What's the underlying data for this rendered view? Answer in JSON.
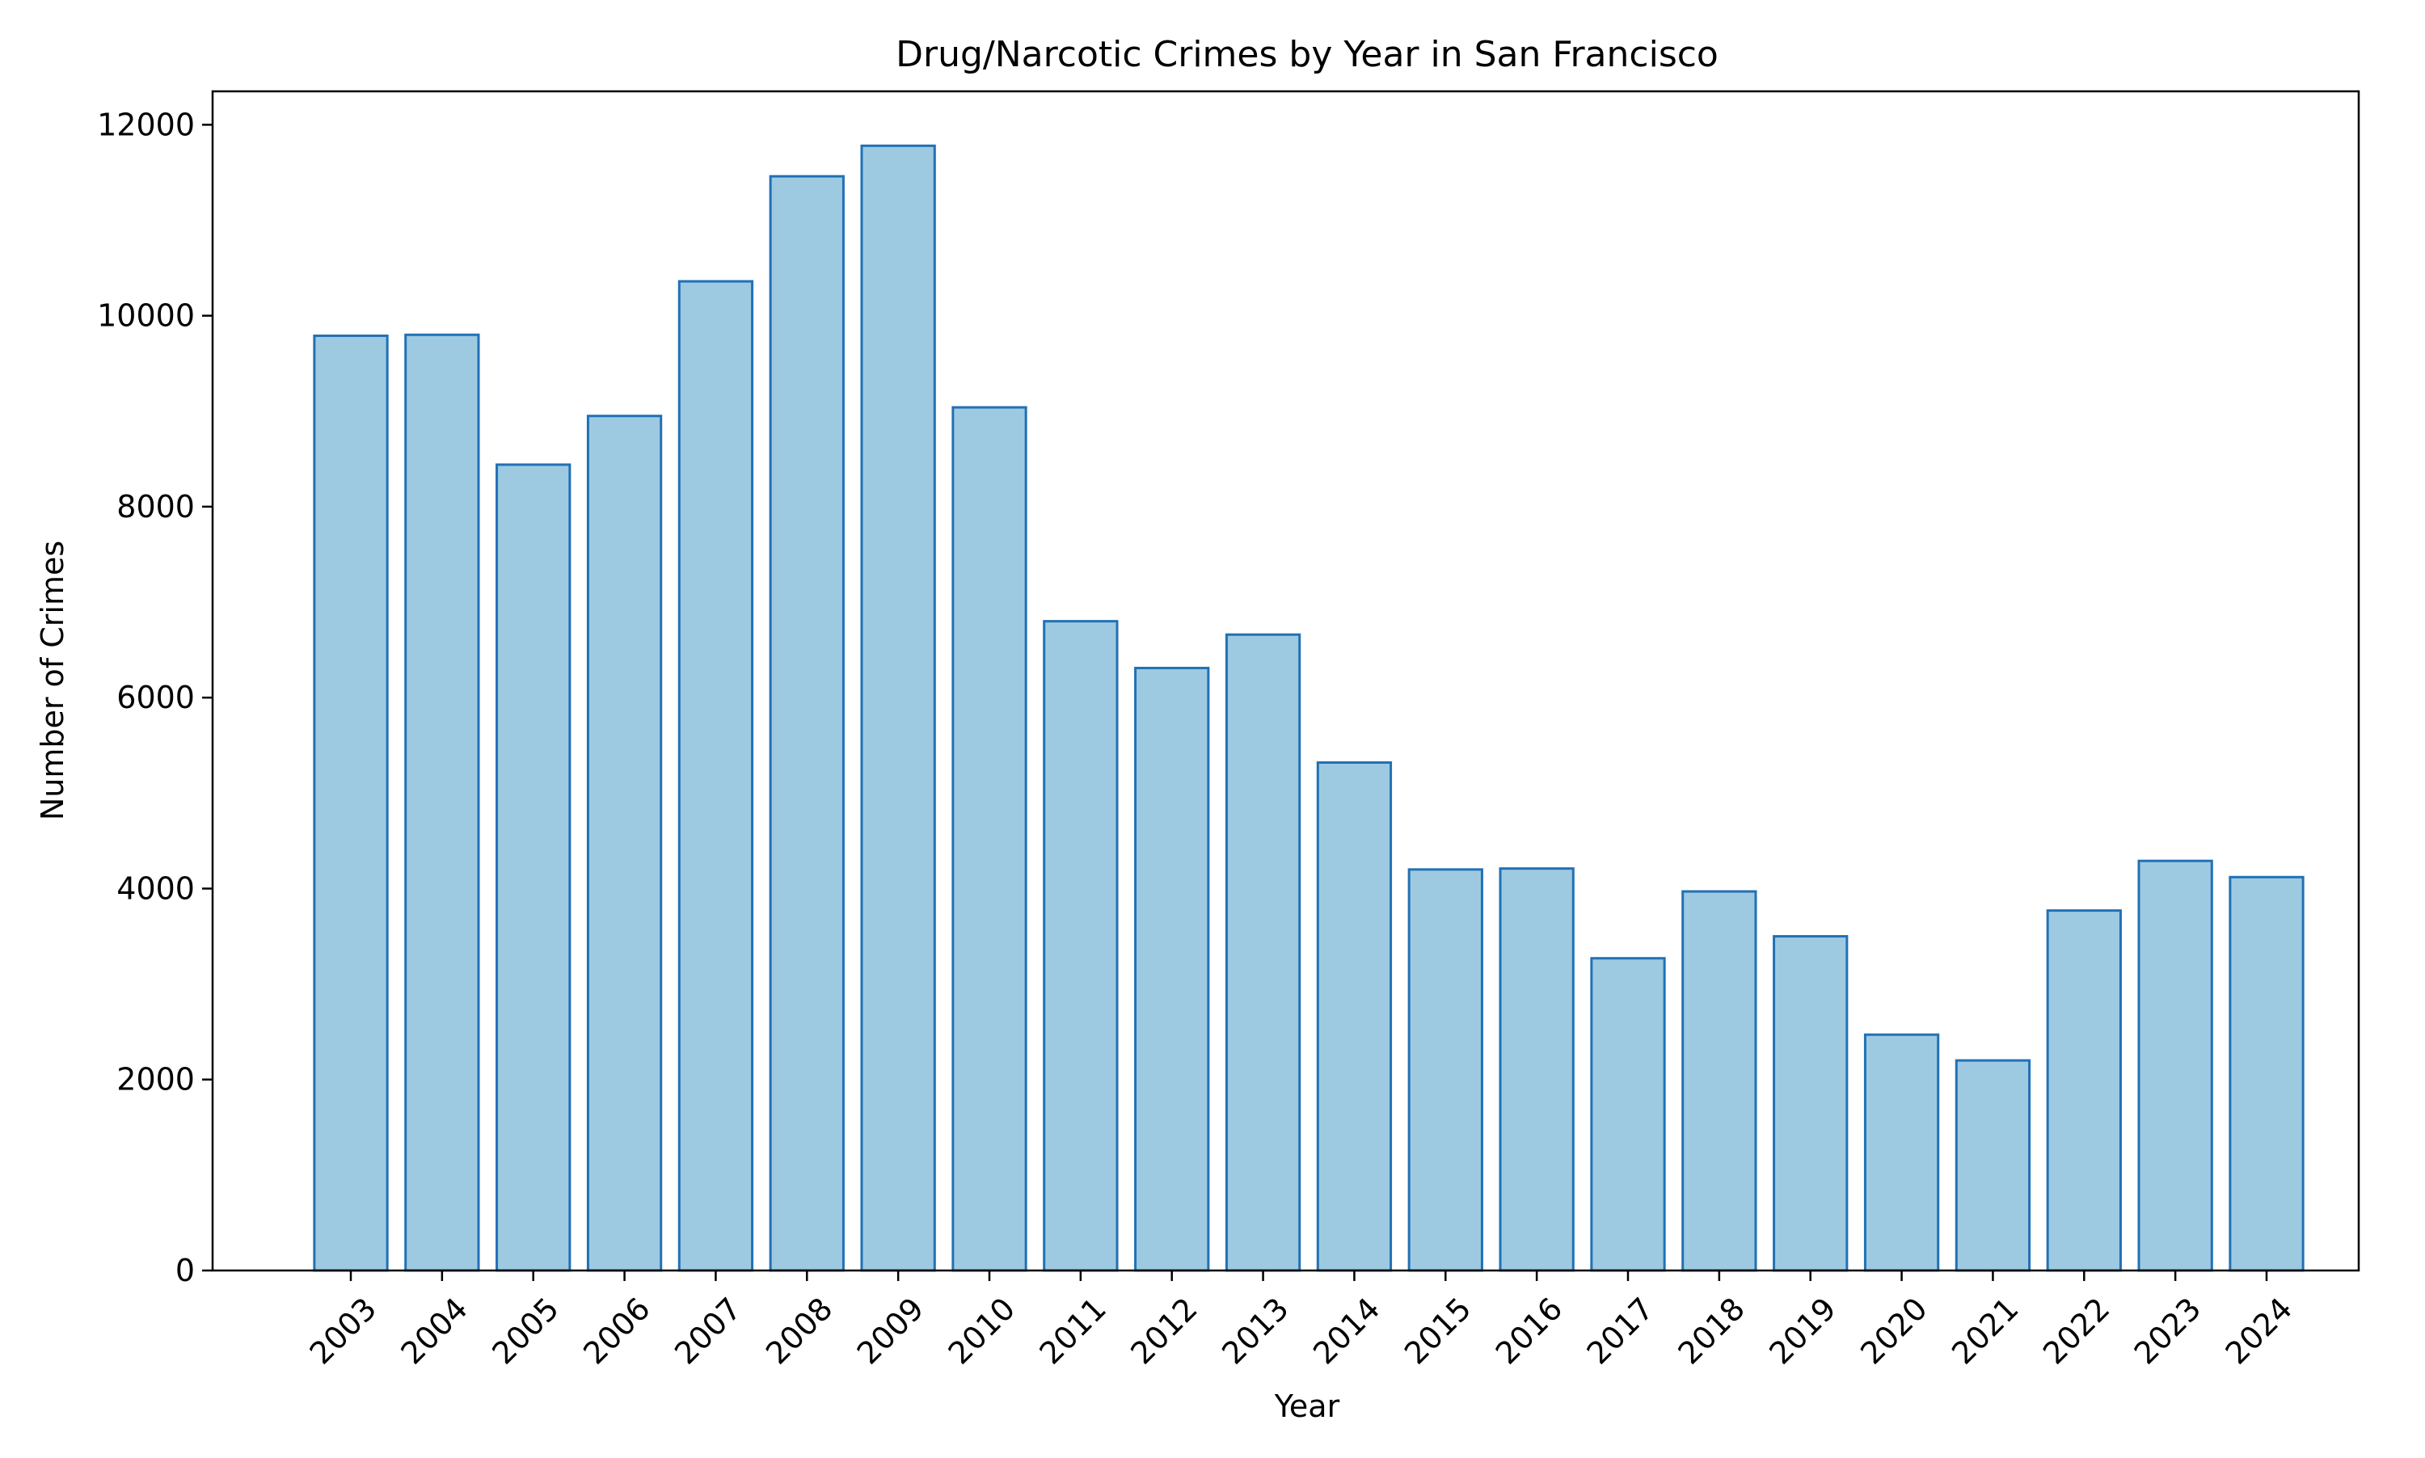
{
  "chart_data": {
    "type": "bar",
    "title": "Drug/Narcotic Crimes by Year in San Francisco",
    "xlabel": "Year",
    "ylabel": "Number of Crimes",
    "categories": [
      "2003",
      "2004",
      "2005",
      "2006",
      "2007",
      "2008",
      "2009",
      "2010",
      "2011",
      "2012",
      "2013",
      "2014",
      "2015",
      "2016",
      "2017",
      "2018",
      "2019",
      "2020",
      "2021",
      "2022",
      "2023",
      "2024"
    ],
    "values": [
      9790,
      9800,
      8440,
      8950,
      10360,
      11460,
      11780,
      9040,
      6800,
      6310,
      6660,
      5320,
      4200,
      4210,
      3270,
      3970,
      3500,
      2470,
      2200,
      3770,
      4290,
      4120
    ],
    "ylim": [
      0,
      12350
    ],
    "yticks": [
      0,
      2000,
      4000,
      6000,
      8000,
      10000,
      12000
    ],
    "grid": false,
    "legend": "none",
    "colors": {
      "bar_fill": "#9ecae1",
      "bar_edge": "#2171b5",
      "axis": "#000000"
    }
  }
}
